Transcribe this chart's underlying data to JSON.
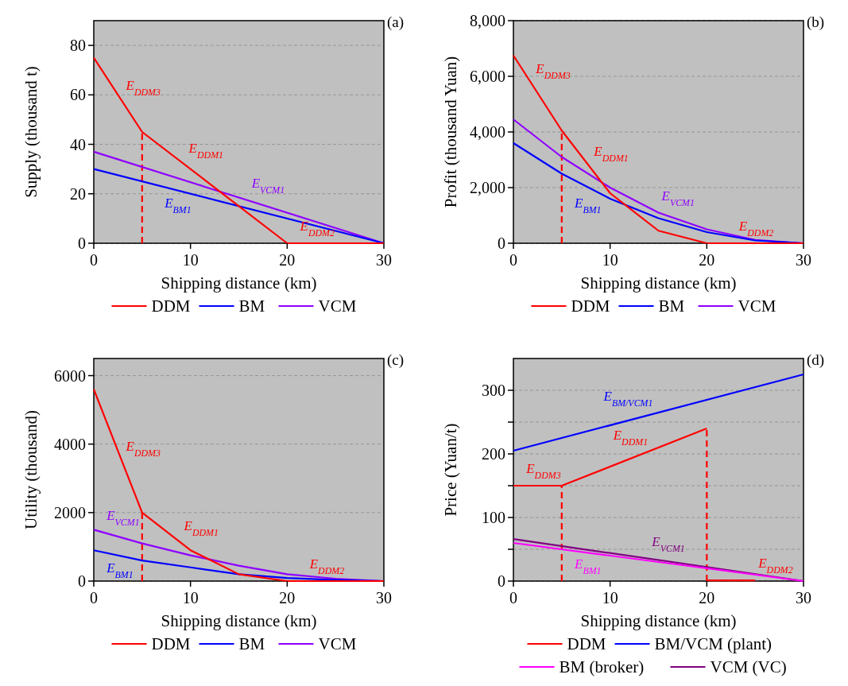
{
  "chart_data": [
    {
      "type": "line",
      "xlabel": "Shipping distance (km)",
      "ylabel": "Supply (thousand t)",
      "xlim": [
        0,
        30
      ],
      "xticks": [
        0,
        10,
        20,
        30
      ],
      "ylim": [
        0,
        90
      ],
      "yticks": [
        0,
        20,
        40,
        60,
        80
      ],
      "grid": "y",
      "legend": "bottom",
      "line_style": "solid",
      "annotations": [
        "(a)",
        {
          "text": "E$_{DDM3}$",
          "x": 3,
          "y": 57
        },
        {
          "text": "E$_{DDM1}$",
          "x": 9.5,
          "y": 31.5
        },
        {
          "text": "E$_{VCM1}$",
          "x": 16,
          "y": 17.3
        },
        {
          "text": "E$_{BM1}$",
          "x": 7,
          "y": 23
        },
        {
          "text": "E$_{DDM2}$",
          "x": 21,
          "y": 0
        }
      ],
      "series": [
        {
          "name": "DDM",
          "color": "#ff0000",
          "x": [
            0,
            5,
            20,
            30
          ],
          "values": [
            75,
            45,
            0,
            0
          ]
        },
        {
          "name": "BM",
          "color": "#0000ff",
          "x": [
            0,
            30
          ],
          "values": [
            30,
            0
          ]
        },
        {
          "name": "VCM",
          "color": "#8f00ff",
          "x": [
            0,
            30
          ],
          "values": [
            37,
            0
          ]
        },
        {
          "color": "#ff0000",
          "line_style": "dashed",
          "x": [
            5,
            5
          ],
          "values": [
            0,
            45
          ]
        }
      ]
    },
    {
      "type": "line",
      "xlabel": "Shipping distance (km)",
      "ylabel": "Profit (thousand Yuan)",
      "xlim": [
        0,
        30
      ],
      "xticks": [
        0,
        10,
        20,
        30
      ],
      "ylim": [
        0,
        8000
      ],
      "yticks": [
        0,
        {
          "value": 2000,
          "label": "2,000"
        },
        {
          "value": 4000,
          "label": "4,000"
        },
        {
          "value": 6000,
          "label": "6,000"
        },
        {
          "value": 8000,
          "label": "8,000"
        }
      ],
      "grid": "y",
      "legend": "bottom",
      "line_style": "solid",
      "annotations": [
        "(b)",
        {
          "text": "E$_{DDM3}$",
          "x": 2,
          "y": 5670
        },
        {
          "text": "E$_{DDM1}$",
          "x": 8,
          "y": 2700
        },
        {
          "text": "E$_{BM1}$",
          "x": 6,
          "y": 2320
        },
        {
          "text": "E$_{VCM1}$",
          "x": 15,
          "y": 1100
        },
        {
          "text": "E$_{DDM2}$",
          "x": 23,
          "y": 0
        }
      ],
      "series": [
        {
          "name": "DDM",
          "color": "#ff0000",
          "x": [
            0,
            5,
            10,
            15,
            20,
            25,
            30
          ],
          "values": [
            6750,
            4050,
            1800,
            450,
            0,
            0,
            0
          ]
        },
        {
          "name": "BM",
          "color": "#0000ff",
          "x": [
            0,
            5,
            10,
            15,
            20,
            25,
            30
          ],
          "values": [
            3600,
            2500,
            1600,
            900,
            400,
            100,
            0
          ]
        },
        {
          "name": "VCM",
          "color": "#8f00ff",
          "x": [
            0,
            5,
            10,
            15,
            20,
            25,
            30
          ],
          "values": [
            4450,
            3100,
            2000,
            1100,
            500,
            120,
            0
          ]
        },
        {
          "color": "#ff0000",
          "line_style": "dashed",
          "x": [
            5,
            5
          ],
          "values": [
            0,
            4050
          ]
        }
      ]
    },
    {
      "type": "line",
      "xlabel": "Shipping distance (km)",
      "ylabel": "Utility (thousand)",
      "xlim": [
        0,
        30
      ],
      "xticks": [
        0,
        10,
        20,
        30
      ],
      "ylim": [
        0,
        6500
      ],
      "yticks": [
        0,
        2000,
        4000,
        6000
      ],
      "grid": "y",
      "legend": "bottom",
      "line_style": "solid",
      "annotations": [
        "(c)",
        {
          "text": "E$_{DDM3}$",
          "x": 3,
          "y": 3440
        },
        {
          "text": "E$_{DDM1}$",
          "x": 9,
          "y": 1120
        },
        {
          "text": "E$_{VCM1}$",
          "x": 1,
          "y": 1420
        },
        {
          "text": "E$_{BM1}$",
          "x": 1,
          "y": 840
        },
        {
          "text": "E$_{DDM2}$",
          "x": 22,
          "y": 0
        }
      ],
      "series": [
        {
          "name": "DDM",
          "color": "#ff0000",
          "x": [
            0,
            5,
            10,
            15,
            20,
            25,
            30
          ],
          "values": [
            5600,
            2000,
            900,
            200,
            0,
            0,
            0
          ]
        },
        {
          "name": "BM",
          "color": "#0000ff",
          "x": [
            0,
            5,
            10,
            15,
            20,
            25,
            30
          ],
          "values": [
            900,
            600,
            400,
            200,
            90,
            30,
            0
          ]
        },
        {
          "name": "VCM",
          "color": "#8f00ff",
          "x": [
            0,
            5,
            10,
            15,
            20,
            25,
            30
          ],
          "values": [
            1500,
            1100,
            750,
            450,
            200,
            70,
            0
          ]
        },
        {
          "color": "#ff0000",
          "line_style": "dashed",
          "x": [
            5,
            5
          ],
          "values": [
            0,
            2000
          ]
        }
      ]
    },
    {
      "type": "line",
      "xlabel": "Shipping distance (km)",
      "ylabel": "Price (Yuan/t)",
      "xlim": [
        0,
        30
      ],
      "xticks": [
        0,
        10,
        20,
        30
      ],
      "ylim": [
        0,
        350
      ],
      "yticks": [
        0,
        {
          "value": 50,
          "label": null
        },
        100,
        {
          "value": 150,
          "label": null
        },
        200,
        {
          "value": 250,
          "label": null
        },
        300
      ],
      "grid": "y",
      "legend": "bottom",
      "line_style": "solid",
      "annotations": [
        "(d)",
        {
          "text": "E$_{DDM3}$",
          "x": 1,
          "y": 150
        },
        {
          "text": "E$_{DDM1}$",
          "x": 10,
          "y": 180
        },
        {
          "text": "E$_{BM/VCM1}$",
          "x": 9,
          "y": 241
        },
        {
          "text": "E$_{VCM1}$",
          "x": 14,
          "y": 35.2
        },
        {
          "text": "E$_{BM1}$",
          "x": 6,
          "y": 48
        },
        {
          "text": "E$_{DDM2}$",
          "x": 25,
          "y": 1
        }
      ],
      "series": [
        {
          "name": "DDM",
          "color": "#ff0000",
          "x": [
            0,
            5,
            20
          ],
          "values": [
            150,
            150,
            240
          ]
        },
        {
          "name": "BM/VCM (plant)",
          "color": "#0000ff",
          "x": [
            0,
            30
          ],
          "values": [
            205,
            325
          ]
        },
        {
          "name": "BM (broker)",
          "color": "#ff00ff",
          "x": [
            0,
            30
          ],
          "values": [
            60,
            0
          ]
        },
        {
          "name": "VCM (VC)",
          "color": "#800080",
          "x": [
            0,
            30
          ],
          "values": [
            66,
            0
          ]
        },
        {
          "color": "#ff0000",
          "x": [
            20,
            25
          ],
          "values": [
            1,
            1
          ]
        },
        {
          "color": "#ff0000",
          "line_style": "dashed",
          "x": [
            5,
            5
          ],
          "values": [
            0,
            150
          ]
        },
        {
          "color": "#ff0000",
          "line_style": "dashed",
          "x": [
            20,
            20
          ],
          "values": [
            0,
            240
          ]
        }
      ]
    }
  ]
}
